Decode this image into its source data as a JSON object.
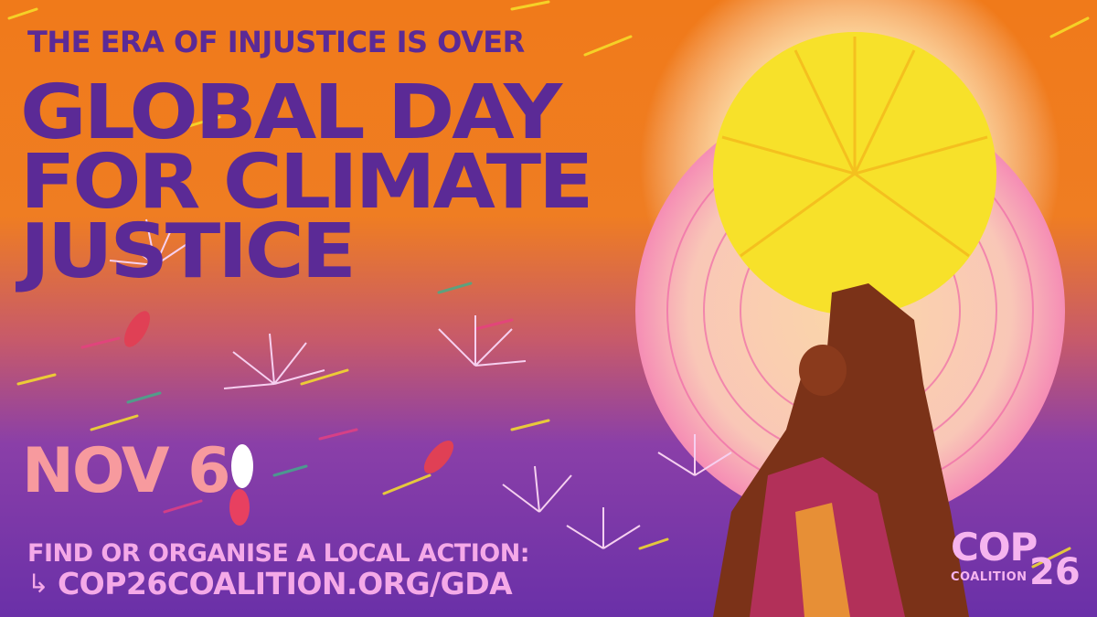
{
  "poster": {
    "kicker": "THE ERA OF INJUSTICE IS OVER",
    "headline_lines": [
      "GLOBAL DAY",
      "FOR CLIMATE",
      "JUSTICE"
    ],
    "date": "NOV 6",
    "cta": "FIND OR ORGANISE A LOCAL ACTION:",
    "url": "COP26COALITION.ORG/GDA",
    "arrow_icon": "arrow-return-right-icon"
  },
  "logo": {
    "cop": "COP",
    "coalition": "COALITION",
    "number": "26"
  },
  "colors": {
    "orange": "#f07a1a",
    "purple": "#5b2a96",
    "violet": "#7a3db0",
    "yellow": "#f7e12a",
    "pink": "#f5a9e8",
    "salmon": "#f79a9e",
    "brown": "#7b3218"
  }
}
